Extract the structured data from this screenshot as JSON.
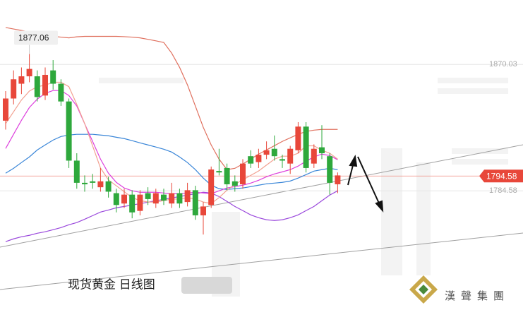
{
  "chart_data": {
    "type": "candlestick",
    "caption": "现货黄金 日线图",
    "watermark": "漢聲集團",
    "ylim": [
      1704,
      1913.6
    ],
    "yticks": [
      1870.03,
      1784.58
    ],
    "last_price": 1794.58,
    "high_marker": 1877.06,
    "up_color": "#e8473a",
    "down_color": "#2ea83c",
    "open": [
      1832,
      1847,
      1857,
      1862,
      1862,
      1849,
      1866,
      1857,
      1845,
      1805,
      1790,
      1791,
      1787,
      1791,
      1783,
      1776,
      1782,
      1771,
      1783,
      1776,
      1782,
      1776,
      1783,
      1777,
      1785,
      1768,
      1775,
      1798,
      1800,
      1791,
      1789,
      1808,
      1804,
      1809,
      1813,
      1806,
      1803,
      1812,
      1828,
      1803,
      1814,
      1808,
      1789
    ],
    "high": [
      1852,
      1866,
      1868,
      1877.06,
      1866,
      1868,
      1873,
      1860,
      1847,
      1810,
      1795,
      1796,
      1800,
      1794,
      1786,
      1786,
      1785,
      1785,
      1787,
      1786,
      1786,
      1790,
      1786,
      1790,
      1788,
      1777,
      1801,
      1813,
      1803,
      1795,
      1806,
      1812,
      1813,
      1818,
      1822,
      1809,
      1815,
      1831,
      1831,
      1816,
      1829,
      1810,
      1797
    ],
    "low": [
      1826,
      1843,
      1850,
      1858,
      1845,
      1846,
      1853,
      1842,
      1800,
      1786,
      1784,
      1786,
      1784,
      1780,
      1770,
      1773,
      1766,
      1768,
      1775,
      1773,
      1775,
      1773,
      1773,
      1774,
      1765,
      1755,
      1773,
      1795,
      1785,
      1784,
      1786,
      1800,
      1800,
      1806,
      1805,
      1800,
      1796,
      1810,
      1797,
      1800,
      1806,
      1782,
      1783
    ],
    "close": [
      1847,
      1860,
      1862,
      1867,
      1848,
      1863,
      1857,
      1845,
      1805,
      1790,
      1789,
      1790,
      1791,
      1784,
      1775,
      1782,
      1770,
      1782,
      1779,
      1783,
      1778,
      1783,
      1776,
      1785,
      1768,
      1774,
      1799,
      1797,
      1789,
      1788,
      1803,
      1803,
      1809,
      1812,
      1808,
      1805,
      1813,
      1828,
      1800,
      1813,
      1810,
      1790,
      1795
    ],
    "series": [
      {
        "color": "#e0705e",
        "values": [
          1895,
          1894,
          1893,
          1892,
          1891,
          1890,
          1889,
          1888.5,
          1888,
          1888.7,
          1889,
          1889,
          1889,
          1889,
          1889,
          1888.8,
          1888.5,
          1888,
          1887,
          1886,
          1884.9,
          1877.7,
          1868.1,
          1856.2,
          1841.9,
          1827.5,
          1815.6,
          1806,
          1798.9,
          1799.8,
          1802.7,
          1806,
          1809.4,
          1812.2,
          1815.1,
          1818,
          1820.4,
          1822.8,
          1824.7,
          1825.6,
          1826.1,
          1826.1,
          1826.1
        ]
      },
      {
        "color": "#3a86d8",
        "values": [
          1796.5,
          1799.8,
          1803.7,
          1807.5,
          1812.2,
          1815.6,
          1818.9,
          1821.3,
          1822.3,
          1822.8,
          1822.8,
          1822.8,
          1822.3,
          1821.8,
          1820.8,
          1819.9,
          1818.5,
          1817,
          1815.6,
          1814.2,
          1812.7,
          1810.8,
          1807.5,
          1803.7,
          1798.9,
          1793.2,
          1788.4,
          1786,
          1785.5,
          1786,
          1786.5,
          1787.4,
          1788.4,
          1789.3,
          1789.8,
          1790.3,
          1791.2,
          1793.2,
          1795.5,
          1797.9,
          1798.9,
          1799.8,
          1798.9
        ]
      },
      {
        "color": "#9a48dc",
        "values": [
          1750.2,
          1752.1,
          1753.5,
          1754.5,
          1755.9,
          1756.9,
          1758.3,
          1759.7,
          1761.6,
          1763.1,
          1765.4,
          1767.8,
          1770.2,
          1771.6,
          1773.1,
          1774,
          1775,
          1775.9,
          1776.9,
          1777.9,
          1778.8,
          1779.8,
          1780.7,
          1781.7,
          1782.6,
          1783.6,
          1783.1,
          1780.7,
          1777.4,
          1774,
          1771.2,
          1768.3,
          1766.4,
          1765,
          1764.5,
          1765,
          1766.4,
          1768.3,
          1771.2,
          1774,
          1777.9,
          1781.7,
          1784.6
        ]
      },
      {
        "color": "#dd3fdd",
        "values": [
          1813.2,
          1822.8,
          1832.3,
          1840.9,
          1846.6,
          1850.5,
          1852.4,
          1852.4,
          1849,
          1841.9,
          1829.9,
          1818,
          1806,
          1796.5,
          1790.3,
          1786.5,
          1784.6,
          1783.6,
          1783.6,
          1783.6,
          1783.1,
          1782.6,
          1782.6,
          1783.1,
          1783.6,
          1783.1,
          1782.6,
          1784.6,
          1786.5,
          1787.4,
          1788.4,
          1789.8,
          1791.7,
          1794.1,
          1796,
          1797.4,
          1798.9,
          1801.3,
          1804.6,
          1807.5,
          1809.4,
          1808.4,
          1805.6
        ]
      },
      {
        "color": "#f2a090",
        "values": [
          1830,
          1838,
          1846,
          1852,
          1855,
          1856,
          1858,
          1858,
          1855,
          1843,
          1830,
          1815,
          1800,
          1792,
          1788,
          1784,
          1780,
          1778,
          1777,
          1777,
          1778,
          1779,
          1779,
          1780,
          1779,
          1777,
          1776,
          1780,
          1785,
          1789,
          1792,
          1795,
          1798,
          1802,
          1806,
          1808,
          1808,
          1810,
          1815,
          1815,
          1812,
          1810,
          1806
        ]
      }
    ]
  }
}
